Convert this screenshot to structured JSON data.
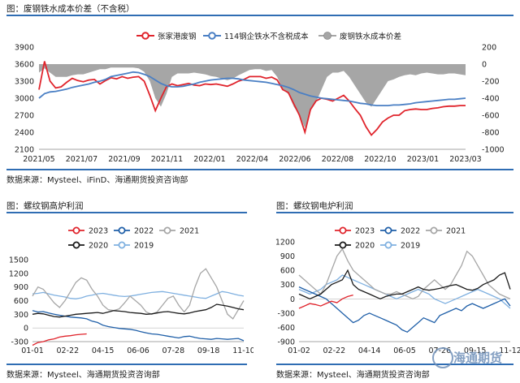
{
  "panels": {
    "top": {
      "title": "图：废钢铁水成本价差（不含税）",
      "source": "数据来源：Mysteel、iFinD、海通期货投资咨询部"
    },
    "left": {
      "title": "图：螺纹钢高炉利润",
      "source": "数据来源：Mysteel、海通期货投资咨询部"
    },
    "right": {
      "title": "图：螺纹钢电炉利润",
      "source": "数据来源：Mysteel、海通期货投资咨询部"
    }
  },
  "watermark": "海通期货",
  "colors": {
    "rule": "#2f6db3",
    "red": "#e0242c",
    "blue": "#4a7fc4",
    "gray": "#a6a6a6",
    "black": "#1a1a1a",
    "lightblue": "#7fb0e0",
    "darkblue": "#1f5fa8"
  },
  "chart_data": [
    {
      "type": "line",
      "title": "",
      "x_ticks": [
        "2021/05",
        "2021/07",
        "2021/09",
        "2021/11",
        "2022/01",
        "2022/04",
        "2022/06",
        "2022/08",
        "2022/10",
        "2023/01",
        "2023/03"
      ],
      "ylim_left": [
        2100,
        3900
      ],
      "yticks_left": [
        "3900",
        "3600",
        "3300",
        "3000",
        "2700",
        "2400",
        "2100"
      ],
      "ylim_right": [
        -1000,
        200
      ],
      "yticks_right": [
        "200",
        "0",
        "-200",
        "-400",
        "-600",
        "-800",
        "-1000"
      ],
      "legend_position": "top",
      "series": [
        {
          "name": "张家港废钢",
          "axis": "left",
          "color": "#e0242c",
          "style": "line",
          "values": [
            3150,
            3650,
            3300,
            3180,
            3200,
            3280,
            3350,
            3310,
            3290,
            3320,
            3330,
            3250,
            3310,
            3360,
            3340,
            3380,
            3350,
            3370,
            3380,
            3300,
            3050,
            2780,
            3000,
            3200,
            3250,
            3220,
            3240,
            3260,
            3230,
            3220,
            3250,
            3240,
            3250,
            3230,
            3210,
            3250,
            3300,
            3330,
            3380,
            3380,
            3380,
            3350,
            3370,
            3320,
            3150,
            3100,
            2900,
            2700,
            2400,
            2800,
            2950,
            3000,
            2980,
            2950,
            3000,
            3050,
            2950,
            2820,
            2700,
            2500,
            2350,
            2450,
            2580,
            2650,
            2700,
            2700,
            2780,
            2800,
            2810,
            2800,
            2800,
            2820,
            2830,
            2850,
            2860,
            2860,
            2870,
            2870
          ]
        },
        {
          "name": "114钢企铁水不含税成本",
          "axis": "left",
          "color": "#4a7fc4",
          "style": "line",
          "values": [
            3000,
            3080,
            3110,
            3120,
            3140,
            3160,
            3190,
            3210,
            3230,
            3250,
            3280,
            3300,
            3330,
            3380,
            3400,
            3420,
            3440,
            3460,
            3450,
            3420,
            3380,
            3320,
            3260,
            3220,
            3200,
            3200,
            3210,
            3230,
            3250,
            3280,
            3300,
            3320,
            3330,
            3340,
            3350,
            3350,
            3340,
            3320,
            3310,
            3300,
            3290,
            3280,
            3260,
            3240,
            3220,
            3190,
            3150,
            3100,
            3070,
            3040,
            3020,
            3000,
            2990,
            2980,
            2970,
            2960,
            2950,
            2930,
            2910,
            2900,
            2880,
            2870,
            2870,
            2870,
            2880,
            2880,
            2890,
            2900,
            2920,
            2930,
            2940,
            2950,
            2960,
            2970,
            2980,
            2980,
            2990,
            3000
          ]
        },
        {
          "name": "废钢铁水成本价差",
          "axis": "right",
          "color": "#a6a6a6",
          "style": "area",
          "values": [
            -100,
            -50,
            -100,
            -150,
            -150,
            -150,
            -130,
            -120,
            -120,
            -100,
            -80,
            -60,
            -60,
            -40,
            -40,
            -40,
            -40,
            -40,
            -50,
            -90,
            -200,
            -400,
            -500,
            -350,
            -150,
            -110,
            -110,
            -110,
            -100,
            -110,
            -120,
            -140,
            -150,
            -170,
            -190,
            -170,
            -130,
            -100,
            -70,
            -60,
            -60,
            -80,
            -70,
            -150,
            -300,
            -350,
            -500,
            -600,
            -750,
            -550,
            -450,
            -300,
            -150,
            -100,
            -100,
            -80,
            -150,
            -250,
            -350,
            -450,
            -500,
            -400,
            -300,
            -200,
            -180,
            -150,
            -130,
            -120,
            -130,
            -110,
            -100,
            -110,
            -120,
            -120,
            -110,
            -110,
            -120,
            -130
          ]
        }
      ]
    },
    {
      "type": "line",
      "title": "",
      "x_ticks": [
        "01-01",
        "02-22",
        "04-15",
        "06-06",
        "07-28",
        "09-18",
        "11-10"
      ],
      "ylim": [
        -300,
        1500
      ],
      "yticks": [
        "1500",
        "1200",
        "900",
        "600",
        "300",
        "0",
        "-300"
      ],
      "legend_position": "top",
      "series": [
        {
          "name": "2023",
          "color": "#e0242c",
          "values": [
            -380,
            -320,
            -300,
            -260,
            -240,
            -200,
            -180,
            -170,
            -150,
            -140,
            -130
          ]
        },
        {
          "name": "2022",
          "color": "#1f5fa8",
          "values": [
            380,
            350,
            360,
            330,
            300,
            280,
            260,
            240,
            230,
            220,
            200,
            150,
            120,
            60,
            30,
            10,
            -10,
            -20,
            -30,
            -50,
            -80,
            -110,
            -130,
            -140,
            -160,
            -180,
            -200,
            -220,
            -190,
            -180,
            -210,
            -230,
            -240,
            -250,
            -230,
            -240,
            -250,
            -240,
            -230,
            -280
          ]
        },
        {
          "name": "2021",
          "color": "#a6a6a6",
          "values": [
            700,
            900,
            850,
            700,
            550,
            450,
            600,
            800,
            1000,
            1100,
            1050,
            850,
            700,
            500,
            400,
            380,
            420,
            550,
            700,
            600,
            500,
            350,
            300,
            350,
            500,
            650,
            700,
            500,
            350,
            500,
            900,
            1200,
            1300,
            1100,
            900,
            600,
            300,
            200,
            400,
            600
          ]
        },
        {
          "name": "2020",
          "color": "#1a1a1a",
          "values": [
            300,
            320,
            310,
            280,
            250,
            240,
            260,
            280,
            300,
            310,
            320,
            330,
            340,
            320,
            350,
            380,
            370,
            360,
            340,
            330,
            320,
            300,
            310,
            330,
            350,
            360,
            340,
            320,
            310,
            330,
            360,
            380,
            400,
            450,
            520,
            500,
            480,
            450,
            420,
            400
          ]
        },
        {
          "name": "2019",
          "color": "#7fb0e0",
          "values": [
            750,
            760,
            780,
            750,
            720,
            700,
            680,
            650,
            640,
            660,
            700,
            720,
            750,
            760,
            740,
            720,
            700,
            690,
            700,
            720,
            740,
            760,
            780,
            790,
            800,
            780,
            760,
            740,
            720,
            700,
            680,
            660,
            650,
            700,
            750,
            800,
            780,
            750,
            720,
            700
          ]
        }
      ]
    },
    {
      "type": "line",
      "title": "",
      "x_ticks": [
        "01-02",
        "02-22",
        "04-14",
        "06-05",
        "07-26",
        "09-15",
        "11-12"
      ],
      "ylim": [
        -900,
        1200
      ],
      "yticks": [
        "1200",
        "900",
        "600",
        "300",
        "0",
        "-300",
        "-600",
        "-900"
      ],
      "legend_position": "top",
      "series": [
        {
          "name": "2023",
          "color": "#e0242c",
          "values": [
            -200,
            -150,
            -100,
            -120,
            -150,
            -100,
            -50,
            -80,
            0,
            50,
            80
          ]
        },
        {
          "name": "2022",
          "color": "#1f5fa8",
          "values": [
            250,
            200,
            150,
            100,
            50,
            0,
            -100,
            -200,
            -300,
            -400,
            -500,
            -450,
            -350,
            -300,
            -350,
            -400,
            -450,
            -500,
            -550,
            -650,
            -700,
            -600,
            -500,
            -400,
            -450,
            -500,
            -350,
            -300,
            -250,
            -200,
            -250,
            -150,
            -100,
            -150,
            -200,
            -150,
            -100,
            -50,
            0,
            -150
          ]
        },
        {
          "name": "2021",
          "color": "#a6a6a6",
          "values": [
            500,
            400,
            300,
            200,
            100,
            300,
            600,
            900,
            1050,
            800,
            600,
            500,
            400,
            300,
            200,
            150,
            100,
            100,
            150,
            100,
            50,
            0,
            50,
            200,
            300,
            400,
            300,
            200,
            300,
            500,
            700,
            1000,
            900,
            700,
            500,
            300,
            200,
            100,
            50,
            0
          ]
        },
        {
          "name": "2020",
          "color": "#1a1a1a",
          "values": [
            100,
            50,
            0,
            50,
            100,
            200,
            300,
            350,
            400,
            600,
            300,
            200,
            150,
            100,
            50,
            0,
            50,
            80,
            100,
            100,
            150,
            200,
            250,
            200,
            180,
            200,
            220,
            250,
            280,
            300,
            250,
            200,
            180,
            220,
            300,
            350,
            400,
            500,
            550,
            200
          ]
        },
        {
          "name": "2019",
          "color": "#7fb0e0",
          "values": [
            200,
            150,
            100,
            150,
            200,
            300,
            350,
            400,
            500,
            450,
            400,
            350,
            300,
            250,
            200,
            150,
            100,
            50,
            0,
            50,
            100,
            150,
            200,
            150,
            100,
            0,
            -50,
            -100,
            -50,
            0,
            50,
            100,
            150,
            200,
            150,
            100,
            50,
            0,
            -100,
            -200
          ]
        }
      ]
    }
  ]
}
